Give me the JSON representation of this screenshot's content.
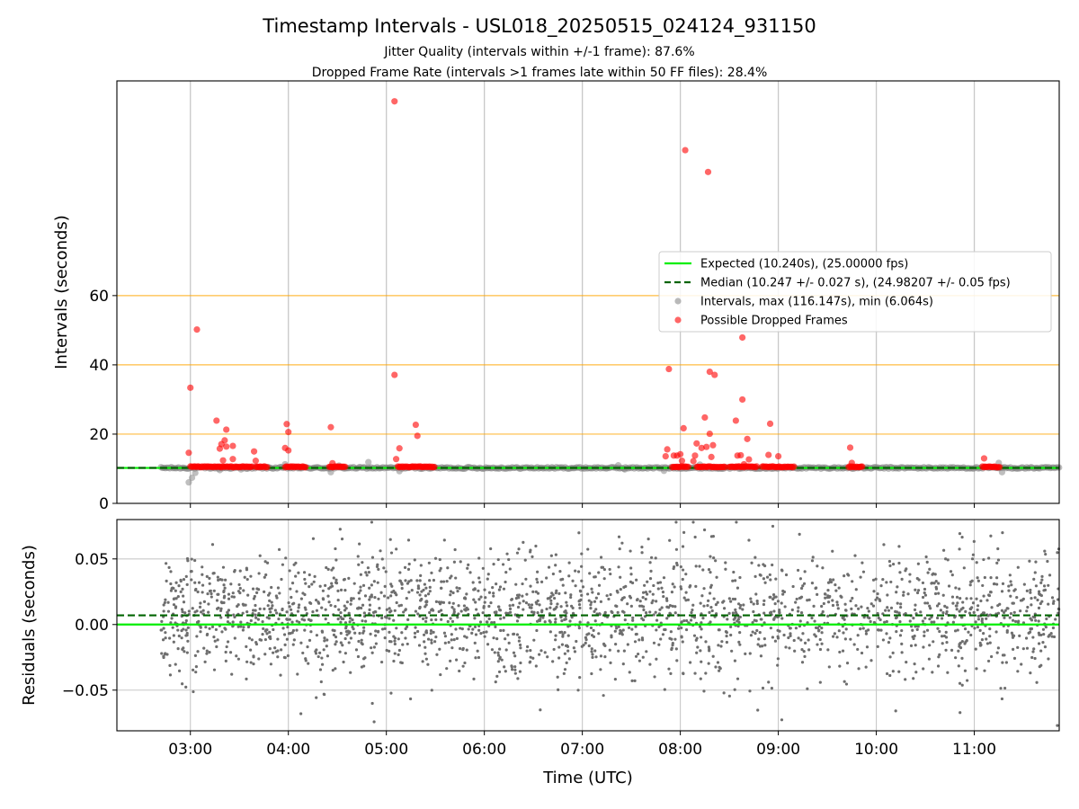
{
  "figure": {
    "title": "Timestamp Intervals - USL018_20250515_024124_931150",
    "subtitle_jitter": "Jitter Quality (intervals within +/-1 frame): 87.6%",
    "subtitle_dropped": "Dropped Frame Rate (intervals >1 frames late within 50 FF files): 28.4%"
  },
  "colors": {
    "expected": "#00ee00",
    "median": "#006400",
    "intervals": "#808080",
    "dropped": "#ff0000",
    "threshold": "#ffa500",
    "grid": "#c8c8c8"
  },
  "chart_data": [
    {
      "type": "scatter",
      "panel": "intervals",
      "xlabel": "",
      "ylabel": "Intervals (seconds)",
      "xlim": [
        "02:15",
        "11:52"
      ],
      "ylim": [
        0,
        122
      ],
      "x_ticks": [
        "03:00",
        "04:00",
        "05:00",
        "06:00",
        "07:00",
        "08:00",
        "09:00",
        "10:00",
        "11:00"
      ],
      "y_ticks": [
        0,
        20,
        40,
        60
      ],
      "grid": "vertical",
      "threshold_lines": [
        20,
        40,
        60
      ],
      "legend_position": "right",
      "legend": [
        "Expected (10.240s), (25.00000 fps)",
        "Median (10.247 +/- 0.027 s), (24.98207 +/- 0.05 fps)",
        "Intervals, max (116.147s), min (6.064s)",
        "Possible Dropped Frames"
      ],
      "expected": 10.24,
      "median": 10.247,
      "series": [
        {
          "name": "Intervals, max (116.147s), min (6.064s)",
          "x_range": [
            "02:42",
            "11:52"
          ],
          "baseline": 10.24,
          "points": [
            [
              "02:59",
              6.06
            ],
            [
              "03:01",
              7.4
            ],
            [
              "03:03",
              8.8
            ],
            [
              "03:18",
              9.6
            ],
            [
              "03:31",
              9.8
            ],
            [
              "03:58",
              11.3
            ],
            [
              "04:26",
              9.0
            ],
            [
              "04:31",
              10.9
            ],
            [
              "04:49",
              11.9
            ],
            [
              "05:08",
              9.3
            ],
            [
              "07:22",
              11.0
            ],
            [
              "07:26",
              9.8
            ],
            [
              "07:50",
              9.4
            ],
            [
              "08:12",
              11.2
            ],
            [
              "11:15",
              11.7
            ],
            [
              "11:17",
              9.0
            ]
          ]
        },
        {
          "name": "Possible Dropped Frames",
          "clusters": [
            [
              "03:00",
              "03:38"
            ],
            [
              "03:40",
              "03:47"
            ],
            [
              "03:58",
              "04:11"
            ],
            [
              "04:25",
              "04:35"
            ],
            [
              "05:07",
              "05:30"
            ],
            [
              "07:55",
              "08:05"
            ],
            [
              "08:10",
              "08:28"
            ],
            [
              "08:30",
              "08:47"
            ],
            [
              "08:50",
              "09:10"
            ],
            [
              "09:43",
              "09:52"
            ],
            [
              "11:05",
              "11:16"
            ]
          ],
          "cluster_value": 10.55,
          "points": [
            [
              "02:59",
              14.6
            ],
            [
              "03:00",
              33.4
            ],
            [
              "03:04",
              50.2
            ],
            [
              "03:16",
              23.9
            ],
            [
              "03:18",
              15.8
            ],
            [
              "03:19",
              17.1
            ],
            [
              "03:20",
              12.4
            ],
            [
              "03:21",
              18.2
            ],
            [
              "03:22",
              21.3
            ],
            [
              "03:22",
              16.4
            ],
            [
              "03:26",
              16.6
            ],
            [
              "03:26",
              12.8
            ],
            [
              "03:39",
              15.0
            ],
            [
              "03:40",
              12.3
            ],
            [
              "03:58",
              16.0
            ],
            [
              "03:59",
              22.9
            ],
            [
              "04:00",
              20.6
            ],
            [
              "04:00",
              15.3
            ],
            [
              "04:26",
              22.0
            ],
            [
              "04:27",
              11.6
            ],
            [
              "05:05",
              116.1
            ],
            [
              "05:05",
              37.1
            ],
            [
              "05:06",
              12.8
            ],
            [
              "05:08",
              15.9
            ],
            [
              "05:18",
              22.7
            ],
            [
              "05:19",
              19.5
            ],
            [
              "07:51",
              13.6
            ],
            [
              "07:52",
              15.6
            ],
            [
              "07:53",
              38.8
            ],
            [
              "07:56",
              13.8
            ],
            [
              "07:58",
              13.8
            ],
            [
              "08:00",
              14.2
            ],
            [
              "08:01",
              12.3
            ],
            [
              "08:02",
              21.7
            ],
            [
              "08:03",
              102.0
            ],
            [
              "08:08",
              12.2
            ],
            [
              "08:09",
              13.8
            ],
            [
              "08:10",
              17.3
            ],
            [
              "08:13",
              16.0
            ],
            [
              "08:15",
              24.8
            ],
            [
              "08:16",
              16.3
            ],
            [
              "08:17",
              95.7
            ],
            [
              "08:18",
              38.0
            ],
            [
              "08:18",
              20.1
            ],
            [
              "08:19",
              13.4
            ],
            [
              "08:20",
              16.8
            ],
            [
              "08:21",
              37.1
            ],
            [
              "08:34",
              23.9
            ],
            [
              "08:35",
              13.8
            ],
            [
              "08:37",
              13.9
            ],
            [
              "08:38",
              47.9
            ],
            [
              "08:38",
              30.0
            ],
            [
              "08:39",
              11.3
            ],
            [
              "08:41",
              18.6
            ],
            [
              "08:42",
              12.7
            ],
            [
              "08:54",
              14.0
            ],
            [
              "08:55",
              23.0
            ],
            [
              "09:00",
              13.6
            ],
            [
              "09:44",
              16.1
            ],
            [
              "09:45",
              11.7
            ],
            [
              "11:06",
              13.0
            ]
          ]
        }
      ]
    },
    {
      "type": "scatter",
      "panel": "residuals",
      "xlabel": "Time (UTC)",
      "ylabel": "Residuals (seconds)",
      "xlim": [
        "02:15",
        "11:52"
      ],
      "ylim": [
        -0.081,
        0.08
      ],
      "x_ticks": [
        "03:00",
        "04:00",
        "05:00",
        "06:00",
        "07:00",
        "08:00",
        "09:00",
        "10:00",
        "11:00"
      ],
      "y_ticks": [
        "0.05",
        "0.00",
        "−0.05"
      ],
      "grid": "both",
      "expected": 0.0,
      "median": 0.007,
      "series": [
        {
          "name": "",
          "x_range": [
            "02:42",
            "11:52"
          ],
          "mean": 0.007,
          "std": 0.024,
          "point_count": 2300
        }
      ]
    }
  ]
}
